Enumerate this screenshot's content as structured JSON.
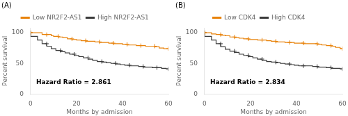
{
  "chart_data": [
    {
      "type": "line",
      "title": "(A)",
      "xlabel": "Months by admission",
      "ylabel": "Percent survival",
      "annotations": [
        "Hazard Ratio = 2.861"
      ],
      "series": [
        {
          "name": "Low NR2F2-AS1",
          "color": "#E8820A",
          "marker": "plus",
          "line_style": "step",
          "x": [
            0,
            3,
            5,
            7,
            9,
            10,
            12,
            14,
            16,
            18,
            20,
            22,
            24,
            26,
            28,
            30,
            32,
            34,
            36,
            38,
            40,
            42,
            44,
            46,
            48,
            50,
            52,
            54,
            56,
            58,
            60
          ],
          "values": [
            100,
            100,
            100,
            97,
            97,
            95,
            94,
            93,
            92,
            90,
            89,
            88,
            87,
            86,
            86,
            85,
            84,
            84,
            83,
            82,
            82,
            81,
            80,
            80,
            79,
            79,
            78,
            78,
            77,
            75,
            74
          ]
        },
        {
          "name": "High NR2F2-AS1",
          "color": "#3A3A3A",
          "marker": "plus",
          "line_style": "step",
          "x": [
            0,
            3,
            5,
            7,
            9,
            11,
            13,
            15,
            17,
            19,
            21,
            23,
            25,
            27,
            29,
            31,
            33,
            35,
            37,
            39,
            41,
            43,
            45,
            47,
            49,
            51,
            53,
            55,
            57,
            59,
            60
          ],
          "values": [
            100,
            94,
            88,
            82,
            78,
            74,
            71,
            69,
            67,
            65,
            63,
            61,
            59,
            57,
            55,
            53,
            52,
            51,
            50,
            49,
            48,
            47,
            46,
            46,
            45,
            44,
            44,
            43,
            43,
            42,
            41
          ]
        }
      ],
      "xlim": [
        0,
        60
      ],
      "ylim": [
        0,
        108
      ],
      "xticks": [
        0,
        20,
        40,
        60
      ],
      "yticks": [
        0,
        50,
        100
      ],
      "legend": "top",
      "grid": false
    },
    {
      "type": "line",
      "title": "(B)",
      "xlabel": "Months by admission",
      "ylabel": "Percent survival",
      "annotations": [
        "Hazard Ratio = 2.834"
      ],
      "series": [
        {
          "name": "Low CDK4",
          "color": "#E8820A",
          "marker": "plus",
          "line_style": "step",
          "x": [
            0,
            3,
            5,
            7,
            9,
            11,
            13,
            15,
            17,
            19,
            21,
            23,
            25,
            27,
            29,
            31,
            33,
            35,
            37,
            39,
            41,
            43,
            45,
            47,
            49,
            51,
            53,
            55,
            57,
            59,
            60
          ],
          "values": [
            100,
            100,
            98,
            97,
            96,
            95,
            93,
            92,
            91,
            90,
            89,
            89,
            88,
            88,
            87,
            86,
            85,
            85,
            84,
            84,
            83,
            83,
            82,
            82,
            82,
            81,
            80,
            79,
            78,
            76,
            74
          ]
        },
        {
          "name": "High CDK4",
          "color": "#3A3A3A",
          "marker": "plus",
          "line_style": "step",
          "x": [
            0,
            3,
            5,
            7,
            9,
            11,
            13,
            15,
            17,
            19,
            21,
            23,
            25,
            27,
            29,
            31,
            33,
            35,
            37,
            39,
            41,
            43,
            45,
            47,
            49,
            51,
            53,
            55,
            57,
            59,
            60
          ],
          "values": [
            100,
            94,
            88,
            82,
            77,
            73,
            70,
            68,
            65,
            63,
            61,
            59,
            57,
            55,
            53,
            52,
            51,
            50,
            49,
            48,
            47,
            46,
            46,
            46,
            45,
            44,
            44,
            43,
            42,
            42,
            41
          ]
        }
      ],
      "xlim": [
        0,
        60
      ],
      "ylim": [
        0,
        108
      ],
      "xticks": [
        0,
        20,
        40,
        60
      ],
      "yticks": [
        0,
        50,
        100
      ],
      "legend": "top",
      "grid": false
    }
  ]
}
